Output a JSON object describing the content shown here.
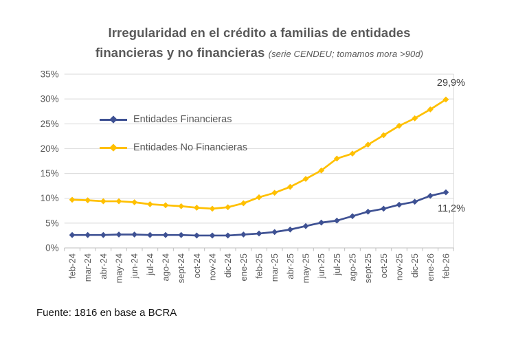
{
  "title": {
    "line1": "Irregularidad en el crédito a familias de entidades",
    "line2_bold": "financieras y no financieras",
    "line2_note": "(serie CENDEU; tomamos mora >90d)"
  },
  "footer": {
    "text": "Fuente: 1816 en base a BCRA"
  },
  "chart_data": {
    "type": "line",
    "title": "Irregularidad en el crédito a familias de entidades financieras y no financieras",
    "subtitle": "(serie CENDEU; tomamos mora >90d)",
    "categories": [
      "feb-24",
      "mar-24",
      "abr-24",
      "may-24",
      "jun-24",
      "jul-24",
      "ago-24",
      "sept-24",
      "oct-24",
      "nov-24",
      "dic-24",
      "ene-25",
      "feb-25",
      "mar-25",
      "abr-25",
      "may-25",
      "jun-25",
      "jul-25",
      "ago-25",
      "sept-25",
      "oct-25",
      "nov-25",
      "dic-25",
      "ene-26",
      "feb-26"
    ],
    "series": [
      {
        "name": "Entidades Financieras",
        "color": "#3E5193",
        "marker": "diamond",
        "values": [
          2.6,
          2.6,
          2.6,
          2.7,
          2.7,
          2.6,
          2.6,
          2.6,
          2.5,
          2.5,
          2.5,
          2.7,
          2.9,
          3.2,
          3.7,
          4.4,
          5.1,
          5.5,
          6.4,
          7.3,
          7.9,
          8.7,
          9.3,
          10.5,
          11.2
        ]
      },
      {
        "name": "Entidades No Financieras",
        "color": "#FFC000",
        "marker": "diamond",
        "values": [
          9.7,
          9.6,
          9.4,
          9.4,
          9.2,
          8.8,
          8.6,
          8.4,
          8.1,
          7.9,
          8.2,
          9.0,
          10.2,
          11.1,
          12.3,
          13.9,
          15.6,
          18.0,
          19.0,
          20.8,
          22.7,
          24.6,
          26.1,
          27.9,
          29.9
        ]
      }
    ],
    "ylim": [
      0,
      35
    ],
    "ytick_step": 5,
    "ytick_suffix": "%",
    "grid": true,
    "legend_position": "inside-top-left",
    "annotations": [
      {
        "text": "29,9%",
        "series": "Entidades No Financieras",
        "category": "feb-26",
        "value": 29.9
      },
      {
        "text": "11,2%",
        "series": "Entidades Financieras",
        "category": "feb-26",
        "value": 11.2
      }
    ],
    "colors": {
      "gridline": "#D9D9D9",
      "axis_line": "#BFBFBF",
      "tick_label": "#595959",
      "title": "#595959",
      "annotation": "#404040"
    }
  }
}
